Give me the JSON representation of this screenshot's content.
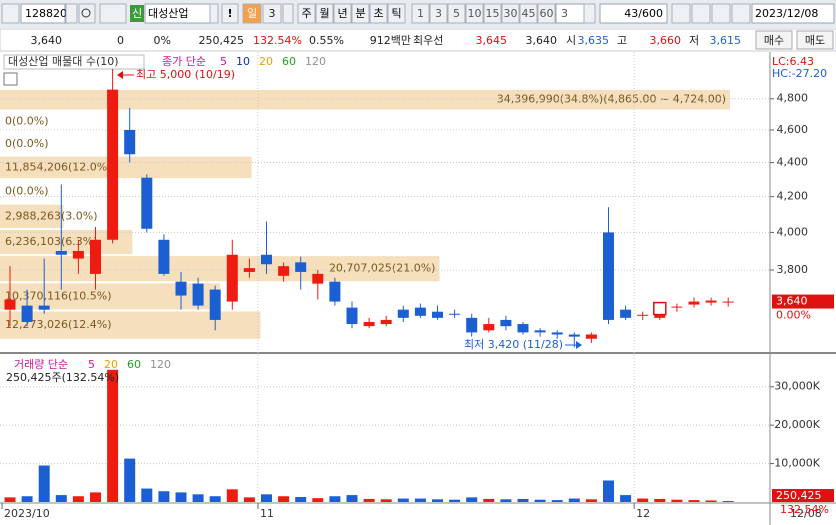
{
  "toolbar": {
    "code": "128820",
    "badge": "신",
    "name": "대성산업",
    "alert": "!",
    "buttons": [
      "일",
      "3"
    ],
    "units": [
      "주",
      "월",
      "년",
      "분",
      "초",
      "틱"
    ],
    "intervals": [
      "1",
      "3",
      "5",
      "10",
      "15",
      "30",
      "45",
      "60",
      "3"
    ],
    "count": "43/600",
    "date": "2023/12/08"
  },
  "info_bar": [
    "3,640",
    "0",
    "0%",
    "250,425",
    "132.54%",
    "0.55%",
    "912백만",
    "최우선",
    "3,645",
    "3,640",
    "시",
    "3,635",
    "고",
    "3,660",
    "저",
    "3,615",
    "매수",
    "매도"
  ],
  "chart_data": [
    {
      "type": "candlestick",
      "title": "대성산업 매물대 수(10)",
      "ma_legend": {
        "label": "종가 단순",
        "periods": [
          5,
          10,
          20,
          60,
          120
        ],
        "colors": [
          "#d0179a",
          "#1030c0",
          "#f0a000",
          "#20a020",
          "#909090"
        ]
      },
      "lc": "LC:6.43",
      "hc": "HC:-27.20",
      "categories": [
        "2023/10",
        null,
        null,
        null,
        null,
        null,
        null,
        null,
        null,
        null,
        null,
        null,
        null,
        null,
        null,
        "11",
        null,
        null,
        null,
        null,
        null,
        null,
        null,
        null,
        null,
        null,
        null,
        null,
        null,
        null,
        null,
        null,
        null,
        null,
        null,
        null,
        null,
        "12",
        null,
        null,
        null,
        null,
        null
      ],
      "open": [
        3600,
        3620,
        3620,
        3900,
        3860,
        3780,
        3960,
        4600,
        4310,
        3960,
        3740,
        3730,
        3700,
        3640,
        3790,
        3880,
        3770,
        3840,
        3730,
        3740,
        3610,
        3520,
        3530,
        3600,
        3610,
        3590,
        3580,
        3560,
        3500,
        3550,
        3530,
        3500,
        3490,
        3480,
        3460,
        4000,
        3600,
        3570,
        3560,
        3610,
        3625,
        3635,
        3635
      ],
      "high": [
        3820,
        3700,
        3860,
        4270,
        3960,
        4030,
        5000,
        4740,
        4330,
        3990,
        3790,
        3760,
        3720,
        3960,
        3860,
        4060,
        3840,
        3870,
        3800,
        3760,
        3640,
        3560,
        3570,
        3620,
        3630,
        3620,
        3600,
        3580,
        3560,
        3570,
        3540,
        3510,
        3500,
        3490,
        3490,
        4140,
        3620,
        3590,
        3630,
        3630,
        3660,
        3660,
        3660
      ],
      "low": [
        3520,
        3520,
        3580,
        3700,
        3780,
        3700,
        3940,
        4400,
        4000,
        3770,
        3600,
        3600,
        3500,
        3600,
        3760,
        3780,
        3740,
        3700,
        3650,
        3620,
        3510,
        3510,
        3520,
        3540,
        3560,
        3550,
        3560,
        3470,
        3490,
        3500,
        3480,
        3470,
        3460,
        3420,
        3440,
        3530,
        3550,
        3550,
        3550,
        3590,
        3610,
        3620,
        3615
      ],
      "close": [
        3650,
        3540,
        3600,
        3880,
        3900,
        3960,
        4860,
        4450,
        4020,
        3780,
        3670,
        3620,
        3550,
        3880,
        3810,
        3830,
        3820,
        3790,
        3780,
        3640,
        3530,
        3540,
        3550,
        3560,
        3570,
        3560,
        3575,
        3490,
        3530,
        3520,
        3490,
        3490,
        3480,
        3470,
        3480,
        3550,
        3560,
        3575,
        3620,
        3615,
        3640,
        3645,
        3640
      ],
      "up_color": "#ee1c10",
      "down_color": "#1c5fd2",
      "log": true,
      "ylim": [
        3398,
        5116
      ],
      "yticks": [
        {
          "value": 3800,
          "label": "3,800"
        },
        {
          "value": 4000,
          "label": "4,000"
        },
        {
          "value": 4200,
          "label": "4,200"
        },
        {
          "value": 4400,
          "label": "4,400"
        },
        {
          "value": 4600,
          "label": "4,600"
        },
        {
          "value": 4800,
          "label": "4,800"
        }
      ],
      "grid": true,
      "volume_profile": {
        "low": [
          4724,
          4583,
          4442,
          4301,
          4160,
          4019,
          3878,
          3737,
          3596,
          3455
        ],
        "high": [
          4865,
          4724,
          4583,
          4442,
          4301,
          4160,
          4019,
          3878,
          3737,
          3596
        ],
        "values": [
          34396990,
          0,
          0,
          11854206,
          0,
          2988263,
          6236103,
          20707025,
          10370116,
          12273026
        ],
        "value_labels": [
          "34,396,990(34.8%)(4,865.00 ~ 4,724.00)",
          "0(0.0%)",
          "0(0.0%)",
          "11,854,206(12.0%)",
          "0(0.0%)",
          "2,988,263(3.0%)",
          "6,236,103(6.3%)",
          "20,707,025(21.0%)",
          "10,370,116(10.5%)",
          "12,273,026(12.4%)"
        ],
        "color": "#f5dfbd"
      },
      "annotations": [
        "최고 5,000 (10/19)",
        "최저 3,420 (11/28)"
      ],
      "last_price": {
        "value": 3640,
        "label": "3,640"
      },
      "last_change": "0.00%",
      "x_end_label": "12/08"
    },
    {
      "type": "bar",
      "legend": {
        "label": "거래량 단순",
        "periods": [
          5,
          20,
          60,
          120
        ],
        "colors": [
          "#d0179a",
          "#f0a000",
          "#20a020",
          "#909090"
        ]
      },
      "volume_label": "250,425주(132.54%)",
      "values": [
        1200000,
        1500000,
        9500000,
        1800000,
        1500000,
        2500000,
        34400000,
        11300000,
        3500000,
        2800000,
        2500000,
        2000000,
        1500000,
        3300000,
        1200000,
        2000000,
        1500000,
        1300000,
        1000000,
        1500000,
        1800000,
        800000,
        700000,
        900000,
        900000,
        700000,
        600000,
        1200000,
        800000,
        700000,
        800000,
        600000,
        500000,
        900000,
        700000,
        5600000,
        1800000,
        900000,
        800000,
        600000,
        500000,
        400000,
        250425
      ],
      "ylim": [
        0,
        38000000
      ],
      "yticks": [
        {
          "value": 10000000,
          "label": "10,000K"
        },
        {
          "value": 20000000,
          "label": "20,000K"
        },
        {
          "value": 30000000,
          "label": "30,000K"
        }
      ],
      "grid": true,
      "last_volume": {
        "value": 250425,
        "label": "250,425"
      },
      "last_ratio": "132.54%"
    }
  ]
}
